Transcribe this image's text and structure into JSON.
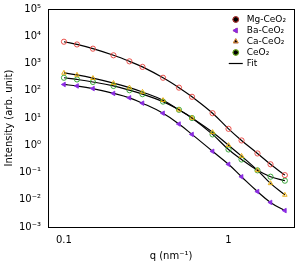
{
  "chart_data": {
    "type": "scatter",
    "log": true,
    "grid": false,
    "legend": "top-right",
    "x_label": "q (nm⁻¹)",
    "y_label": "Intensity (arb. unit)",
    "xlim": [
      0.08,
      2.5
    ],
    "xticks": [
      0.1,
      1
    ],
    "ylim": [
      0.001,
      100000
    ],
    "yticks": [
      {
        "value": 0.001,
        "label": "10⁻³"
      },
      {
        "value": 0.01,
        "label": "10⁻²"
      },
      {
        "value": 0.1,
        "label": "10⁻¹"
      },
      {
        "value": 1,
        "label": "10⁰"
      },
      {
        "value": 10,
        "label": "10¹"
      },
      {
        "value": 100,
        "label": "10²"
      },
      {
        "value": 1000,
        "label": "10³"
      },
      {
        "value": 10000,
        "label": "10⁴"
      },
      {
        "value": 100000,
        "label": "10⁵"
      }
    ],
    "x": [
      0.1,
      0.12,
      0.15,
      0.2,
      0.25,
      0.3,
      0.4,
      0.5,
      0.6,
      0.8,
      1.0,
      1.2,
      1.5,
      1.8,
      2.2
    ],
    "series": [
      {
        "name": "Mg-CeO₂",
        "type": "scatter",
        "color": "#e8403a",
        "marker": "circle-open",
        "values": [
          6300,
          5000,
          3500,
          2000,
          1200,
          750,
          300,
          130,
          60,
          15,
          4,
          1.5,
          0.5,
          0.2,
          0.08
        ]
      },
      {
        "name": "Ba-CeO₂",
        "type": "scatter",
        "color": "#8a2be2",
        "marker": "triangle-left",
        "values": [
          170,
          150,
          120,
          80,
          55,
          35,
          15,
          6,
          2.5,
          0.6,
          0.2,
          0.07,
          0.02,
          0.008,
          0.004
        ]
      },
      {
        "name": "Ca-CeO₂",
        "type": "scatter",
        "color": "#e6a800",
        "marker": "triangle-open",
        "values": [
          450,
          380,
          290,
          190,
          130,
          90,
          45,
          20,
          10,
          3,
          1,
          0.4,
          0.12,
          0.04,
          0.015
        ]
      },
      {
        "name": "CeO₂",
        "type": "scatter",
        "color": "#2ca02c",
        "marker": "circle-open",
        "values": [
          300,
          260,
          210,
          150,
          105,
          75,
          40,
          20,
          10,
          2.5,
          0.7,
          0.3,
          0.12,
          0.07,
          0.05
        ]
      },
      {
        "name": "Fit",
        "type": "line",
        "color": "#000000",
        "line_style": "solid",
        "values": [
          6300,
          5000,
          3500,
          2000,
          1200,
          750,
          300,
          130,
          60,
          15,
          4,
          1.5,
          0.5,
          0.2,
          0.08
        ]
      },
      {
        "name": "Fit",
        "type": "line",
        "color": "#000000",
        "line_style": "solid",
        "values": [
          170,
          150,
          120,
          80,
          55,
          35,
          15,
          6,
          2.5,
          0.6,
          0.2,
          0.07,
          0.02,
          0.008,
          0.004
        ]
      },
      {
        "name": "Fit",
        "type": "line",
        "color": "#000000",
        "line_style": "solid",
        "values": [
          450,
          380,
          290,
          190,
          130,
          90,
          45,
          20,
          10,
          3,
          1,
          0.4,
          0.12,
          0.04,
          0.015
        ]
      },
      {
        "name": "Fit",
        "type": "line",
        "color": "#000000",
        "line_style": "solid",
        "values": [
          300,
          260,
          210,
          150,
          105,
          75,
          40,
          20,
          10,
          2.5,
          0.7,
          0.3,
          0.12,
          0.07,
          0.05
        ]
      }
    ]
  }
}
